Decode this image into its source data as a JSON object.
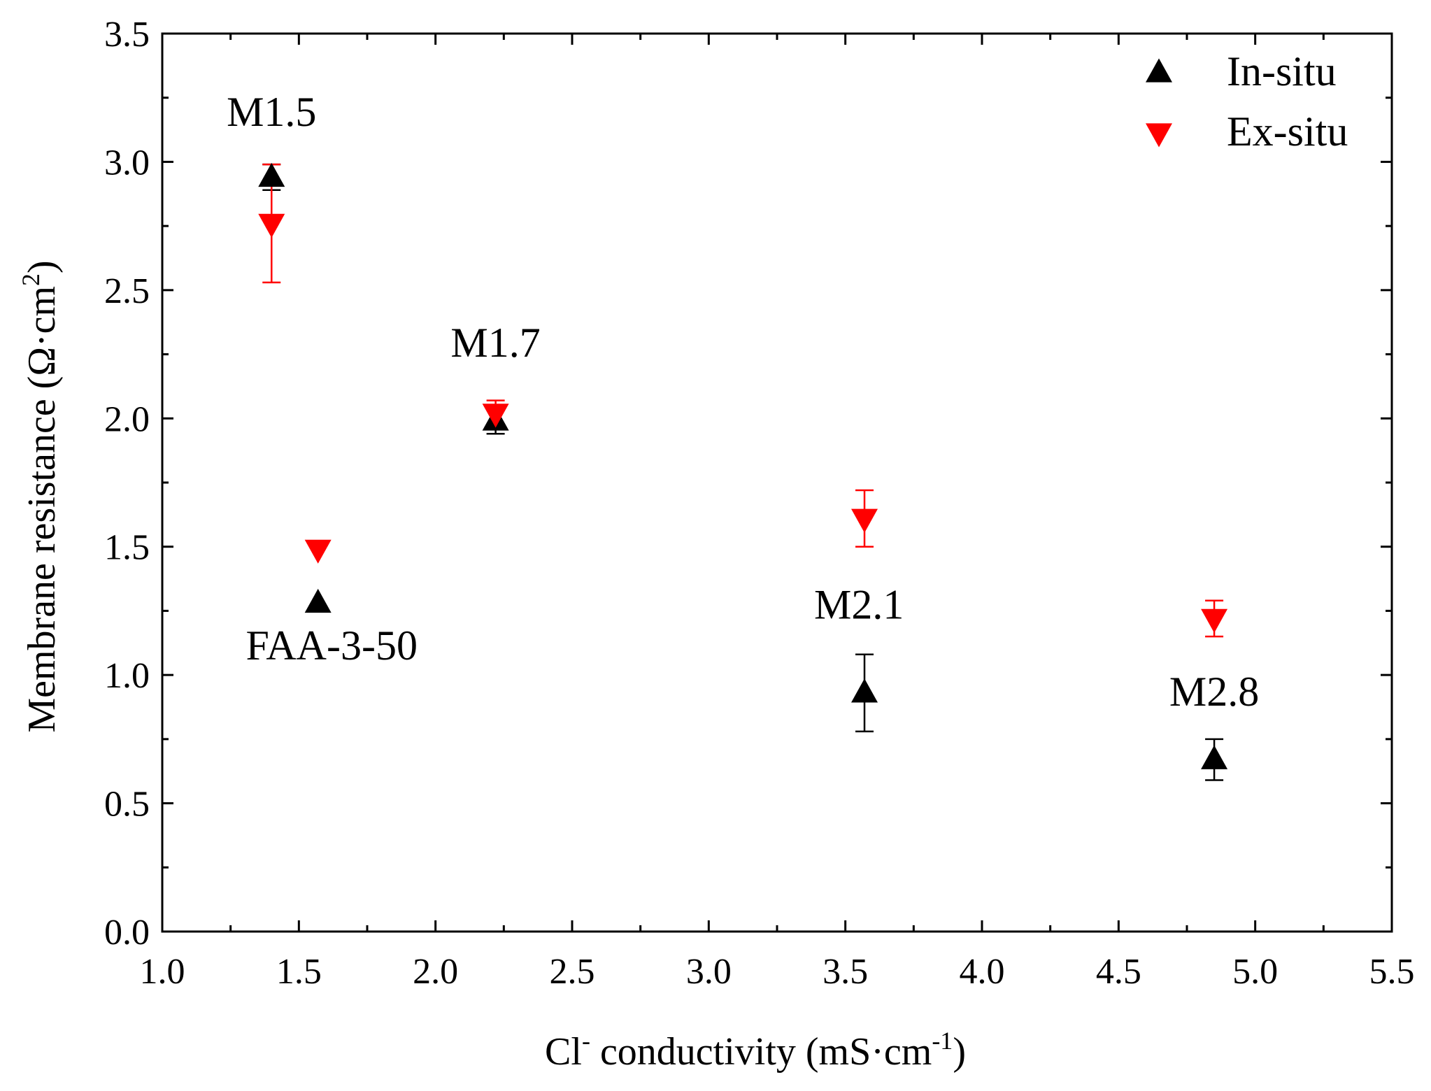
{
  "chart_data": {
    "type": "scatter",
    "title": "",
    "xlabel": {
      "main": "Cl",
      "sup": "-",
      "rest": " conductivity (mS·cm",
      "sup2": "-1",
      "end": ")"
    },
    "ylabel": {
      "main": "Membrane resistance (Ω·cm",
      "sup": "2",
      "end": ")"
    },
    "xlim": [
      1.0,
      5.5
    ],
    "ylim": [
      0.0,
      3.5
    ],
    "x_ticks": [
      "1.0",
      "1.5",
      "2.0",
      "2.5",
      "3.0",
      "3.5",
      "4.0",
      "4.5",
      "5.0",
      "5.5"
    ],
    "y_ticks": [
      "0.0",
      "0.5",
      "1.0",
      "1.5",
      "2.0",
      "2.5",
      "3.0",
      "3.5"
    ],
    "legend_position": "top-right",
    "series": [
      {
        "name": "In-situ",
        "marker": "triangle-up",
        "color": "#000000",
        "points": [
          {
            "x": 1.4,
            "y": 2.94,
            "err_low": 0.05,
            "err_high": 0.05
          },
          {
            "x": 1.57,
            "y": 1.28,
            "err_low": 0.0,
            "err_high": 0.0
          },
          {
            "x": 2.22,
            "y": 1.99,
            "err_low": 0.05,
            "err_high": 0.05
          },
          {
            "x": 3.57,
            "y": 0.93,
            "err_low": 0.15,
            "err_high": 0.15
          },
          {
            "x": 4.85,
            "y": 0.67,
            "err_low": 0.08,
            "err_high": 0.08
          }
        ]
      },
      {
        "name": "Ex-situ",
        "marker": "triangle-down",
        "color": "#ff0000",
        "points": [
          {
            "x": 1.4,
            "y": 2.76,
            "err_low": 0.23,
            "err_high": 0.23
          },
          {
            "x": 1.57,
            "y": 1.49,
            "err_low": 0.0,
            "err_high": 0.0
          },
          {
            "x": 2.22,
            "y": 2.02,
            "err_low": 0.05,
            "err_high": 0.05
          },
          {
            "x": 3.57,
            "y": 1.61,
            "err_low": 0.11,
            "err_high": 0.11
          },
          {
            "x": 4.85,
            "y": 1.22,
            "err_low": 0.07,
            "err_high": 0.07
          }
        ]
      }
    ],
    "annotations": [
      {
        "text": "M1.5",
        "x": 1.4,
        "y": 3.14
      },
      {
        "text": "FAA-3-50",
        "x": 1.62,
        "y": 1.06
      },
      {
        "text": "M1.7",
        "x": 2.22,
        "y": 2.24
      },
      {
        "text": "M2.1",
        "x": 3.55,
        "y": 1.22
      },
      {
        "text": "M2.8",
        "x": 4.85,
        "y": 0.88
      }
    ]
  }
}
